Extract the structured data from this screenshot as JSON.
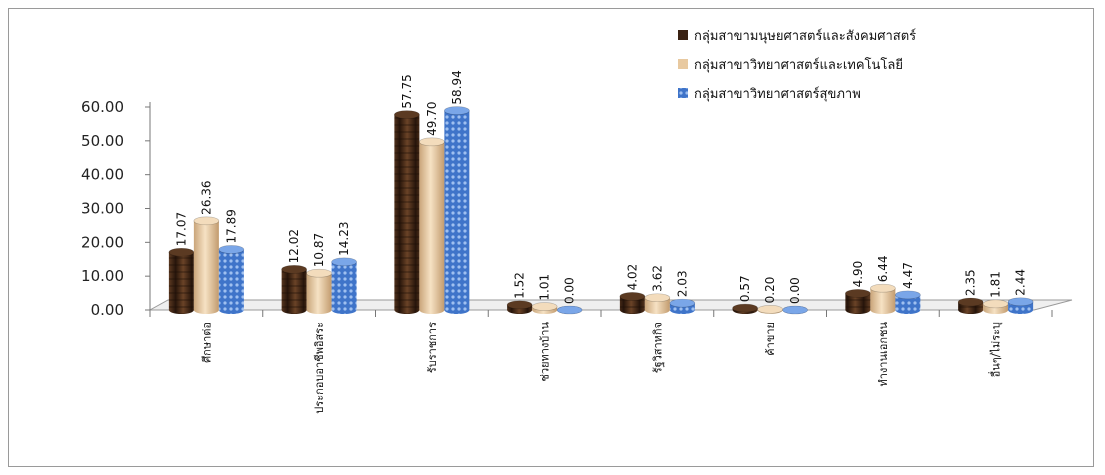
{
  "chart_data": {
    "type": "bar",
    "title": "",
    "xlabel": "",
    "ylabel": "",
    "ylim": [
      0,
      60
    ],
    "yticks": [
      "0.00",
      "10.00",
      "20.00",
      "30.00",
      "40.00",
      "50.00",
      "60.00"
    ],
    "categories": [
      "ศึกษาต่อ",
      "ประกอบอาชีพอิสระ",
      "รับราชการ",
      "ช่วยทางบ้าน",
      "รัฐวิสาหกิจ",
      "ค้าขาย",
      "ทำงานเอกชน",
      "อื่นๆ/ไม่ระบุ"
    ],
    "series": [
      {
        "name": "กลุ่มสาขามนุษยศาสตร์และสังคมศาสตร์",
        "color": "#4a2c1a",
        "values": [
          17.07,
          12.02,
          57.75,
          1.52,
          4.02,
          0.57,
          4.9,
          2.35
        ],
        "labels": [
          "17.07",
          "12.02",
          "57.75",
          "1.52",
          "4.02",
          "0.57",
          "4.90",
          "2.35"
        ]
      },
      {
        "name": "กลุ่มสาขาวิทยาศาสตร์และเทคโนโลยี",
        "color": "#e8c9a0",
        "values": [
          26.36,
          10.87,
          49.7,
          1.01,
          3.62,
          0.2,
          6.44,
          1.81
        ],
        "labels": [
          "26.36",
          "10.87",
          "49.70",
          "1.01",
          "3.62",
          "0.20",
          "6.44",
          "1.81"
        ]
      },
      {
        "name": "กลุ่มสาขาวิทยาศาสตร์สุขภาพ",
        "color": "#3a6ec2",
        "values": [
          17.89,
          14.23,
          58.94,
          0.0,
          2.03,
          0.0,
          4.47,
          2.44
        ],
        "labels": [
          "17.89",
          "14.23",
          "58.94",
          "0.00",
          "2.03",
          "0.00",
          "4.47",
          "2.44"
        ]
      }
    ],
    "grid": false,
    "legend": "top-right"
  }
}
